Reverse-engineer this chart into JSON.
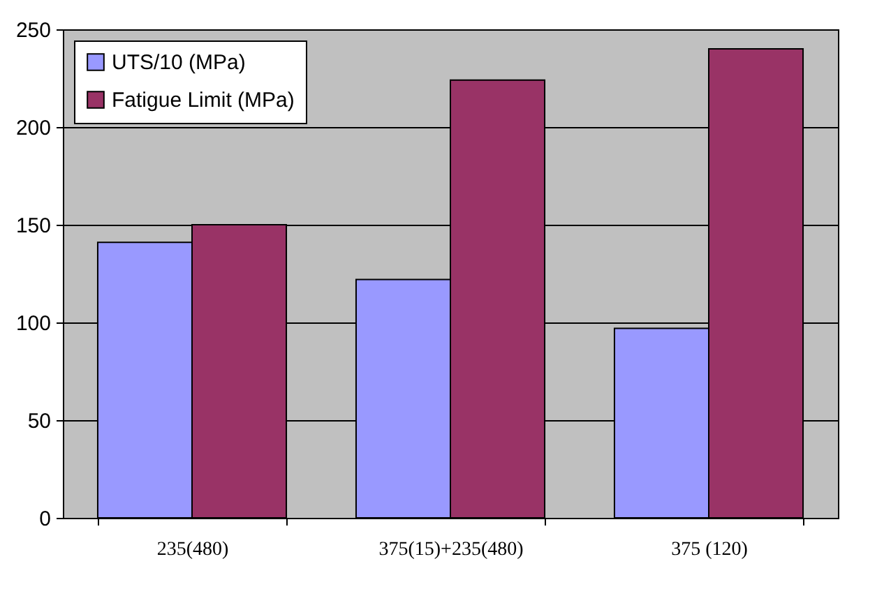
{
  "chart_data": {
    "type": "bar",
    "categories": [
      "235(480)",
      "375(15)+235(480)",
      "375 (120)"
    ],
    "series": [
      {
        "name": "UTS/10 (MPa)",
        "color": "#9999ff",
        "values": [
          141,
          122,
          97
        ]
      },
      {
        "name": "Fatigue Limit (MPa)",
        "color": "#993366",
        "values": [
          150,
          224,
          240
        ]
      }
    ],
    "ylim": [
      0,
      250
    ],
    "yticks": [
      0,
      50,
      100,
      150,
      200,
      250
    ],
    "grid": "y",
    "legend": "top left"
  }
}
